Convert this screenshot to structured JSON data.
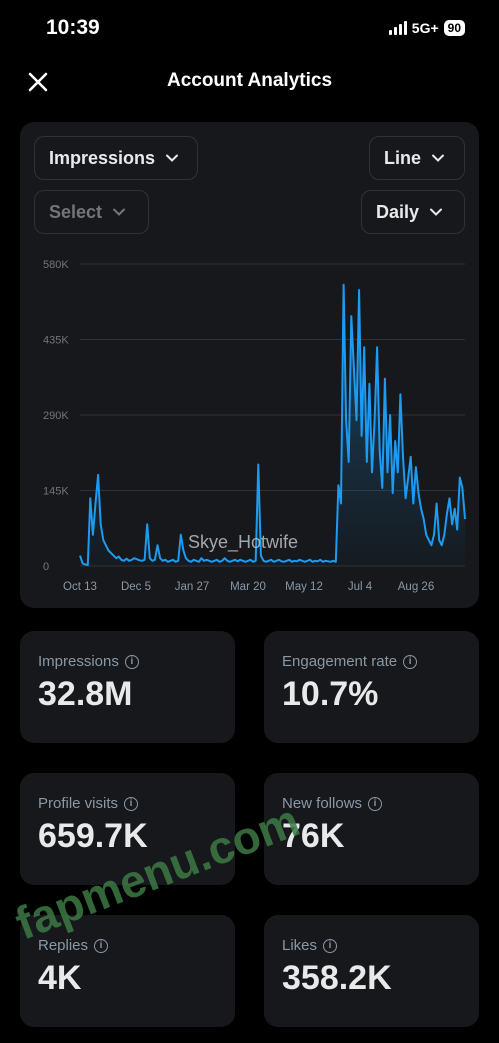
{
  "status_bar": {
    "time": "10:39",
    "network": "5G+",
    "battery": "90"
  },
  "header": {
    "title": "Account Analytics"
  },
  "filters": {
    "metric": "Impressions",
    "chart_type": "Line",
    "compare": "Select",
    "interval": "Daily"
  },
  "chart_data": {
    "type": "area",
    "y_ticks": [
      "580K",
      "435K",
      "290K",
      "145K",
      "0"
    ],
    "x_ticks": [
      "Oct 13",
      "Dec 5",
      "Jan 27",
      "Mar 20",
      "May 12",
      "Jul 4",
      "Aug 26"
    ],
    "ylim": [
      0,
      580000
    ],
    "grid": true,
    "watermark": "Skye_Hotwife",
    "series": [
      {
        "values": [
          20000,
          5000,
          3000,
          2000,
          130000,
          60000,
          120000,
          175000,
          80000,
          50000,
          40000,
          30000,
          25000,
          20000,
          15000,
          18000,
          12000,
          10000,
          14000,
          10000,
          12000,
          15000,
          13000,
          11000,
          10000,
          12000,
          80000,
          15000,
          10000,
          12000,
          40000,
          15000,
          10000,
          12000,
          8000,
          10000,
          12000,
          8000,
          10000,
          60000,
          30000,
          15000,
          10000,
          8000,
          12000,
          10000,
          8000,
          15000,
          10000,
          12000,
          10000,
          8000,
          10000,
          12000,
          8000,
          10000,
          15000,
          10000,
          8000,
          10000,
          12000,
          9000,
          12000,
          10000,
          8000,
          10000,
          12000,
          8000,
          10000,
          195000,
          20000,
          10000,
          8000,
          10000,
          12000,
          8000,
          10000,
          12000,
          9000,
          8000,
          10000,
          12000,
          8000,
          10000,
          9000,
          12000,
          10000,
          8000,
          10000,
          12000,
          8000,
          10000,
          9000,
          12000,
          8000,
          10000,
          9000,
          8000,
          10000,
          8000,
          155000,
          120000,
          540000,
          280000,
          200000,
          480000,
          380000,
          280000,
          530000,
          250000,
          420000,
          200000,
          350000,
          180000,
          280000,
          420000,
          220000,
          150000,
          360000,
          180000,
          290000,
          140000,
          240000,
          180000,
          330000,
          210000,
          130000,
          170000,
          210000,
          120000,
          190000,
          140000,
          110000,
          90000,
          60000,
          50000,
          40000,
          60000,
          120000,
          50000,
          40000,
          60000,
          100000,
          130000,
          80000,
          110000,
          70000,
          170000,
          150000,
          90000
        ]
      }
    ]
  },
  "metrics": [
    {
      "label": "Impressions",
      "value": "32.8M"
    },
    {
      "label": "Engagement rate",
      "value": "10.7%"
    },
    {
      "label": "Profile visits",
      "value": "659.7K"
    },
    {
      "label": "New follows",
      "value": "76K"
    },
    {
      "label": "Replies",
      "value": "4K"
    },
    {
      "label": "Likes",
      "value": "358.2K"
    }
  ],
  "page_watermark": "fapmenu.com",
  "colors": {
    "accent": "#1d9bf0",
    "card": "#16181c",
    "background": "#000000"
  }
}
